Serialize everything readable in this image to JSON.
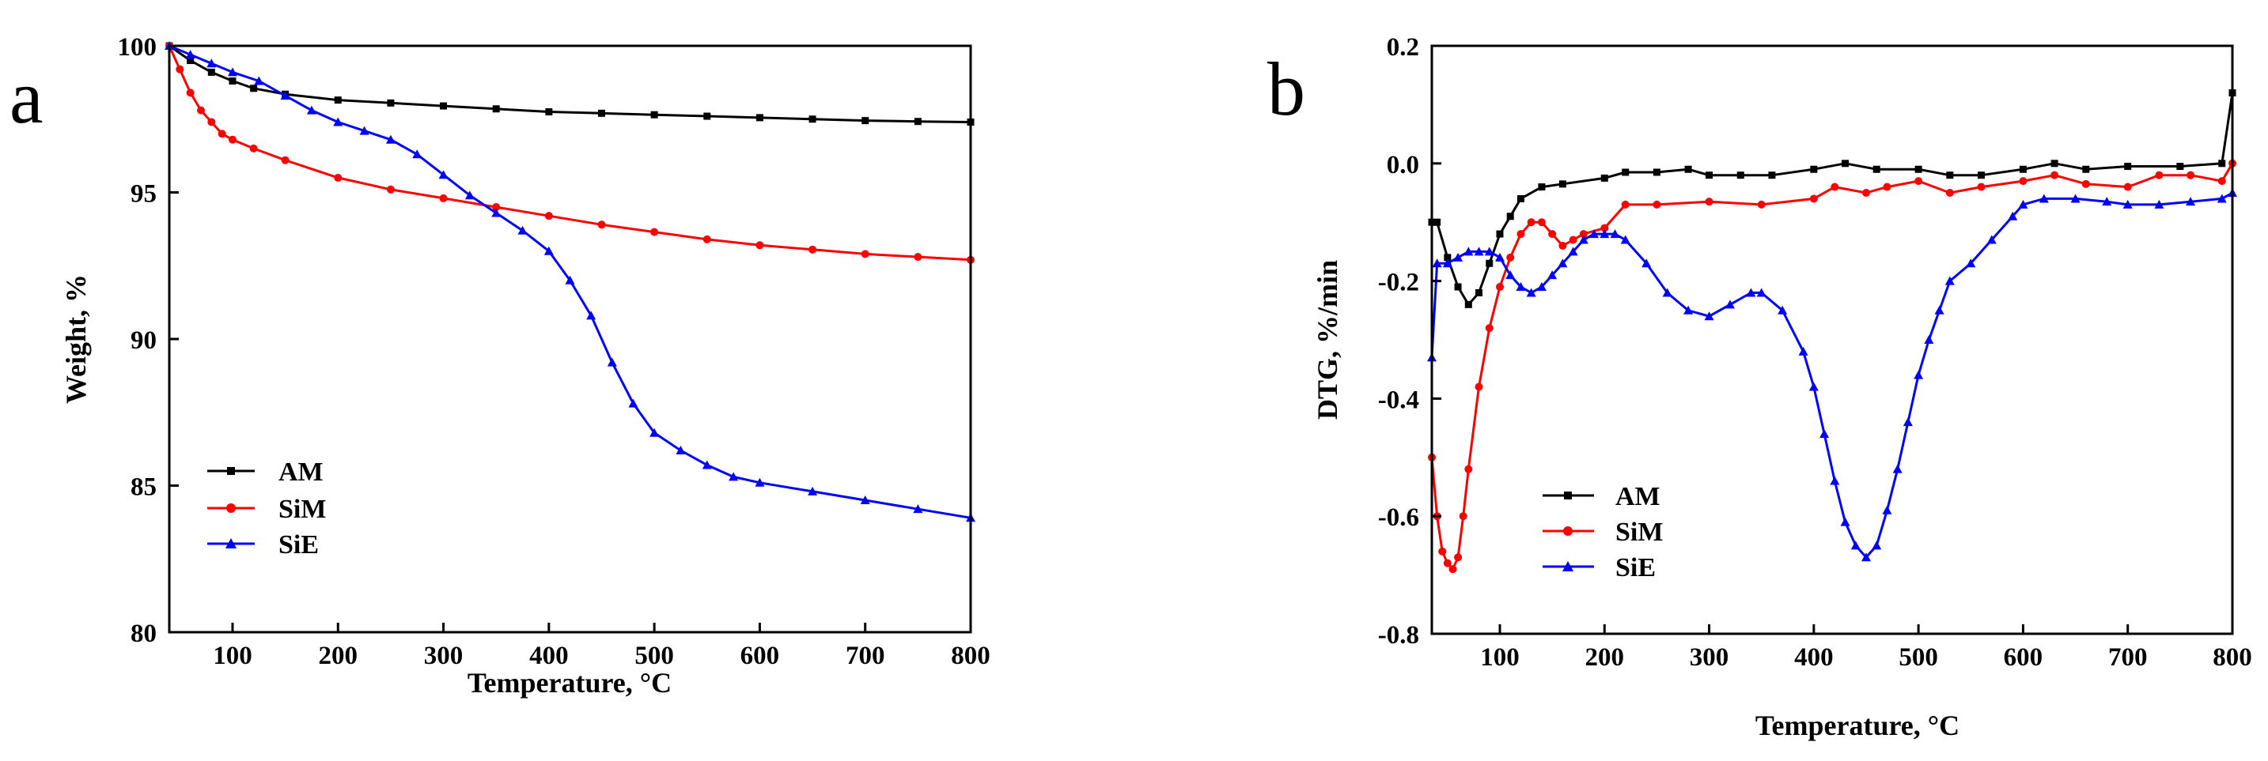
{
  "chart_data": [
    {
      "type": "line",
      "panel_label": "a",
      "title": "",
      "xlabel": "Temperature, °C",
      "ylabel": "Weight, %",
      "xlim": [
        40,
        800
      ],
      "ylim": [
        80,
        100
      ],
      "xticks": [
        100,
        200,
        300,
        400,
        500,
        600,
        700,
        800
      ],
      "xtick_labels": [
        "100",
        "200",
        "300",
        "400",
        "500",
        "600",
        "700",
        "800"
      ],
      "yticks": [
        80,
        85,
        90,
        95,
        100
      ],
      "ytick_labels": [
        "80",
        "85",
        "90",
        "95",
        "100"
      ],
      "grid": false,
      "legend_position": "bottom-left",
      "series": [
        {
          "name": "AM",
          "color": "#000000",
          "marker": "square",
          "x": [
            40,
            60,
            80,
            100,
            120,
            150,
            200,
            250,
            300,
            350,
            400,
            450,
            500,
            550,
            600,
            650,
            700,
            750,
            800
          ],
          "y": [
            100.0,
            99.5,
            99.1,
            98.8,
            98.55,
            98.35,
            98.15,
            98.05,
            97.95,
            97.85,
            97.75,
            97.7,
            97.65,
            97.6,
            97.55,
            97.5,
            97.45,
            97.42,
            97.4
          ]
        },
        {
          "name": "SiM",
          "color": "#ff0000",
          "marker": "circle",
          "x": [
            40,
            50,
            60,
            70,
            80,
            90,
            100,
            120,
            150,
            200,
            250,
            300,
            350,
            400,
            450,
            500,
            550,
            600,
            650,
            700,
            750,
            800
          ],
          "y": [
            100.0,
            99.2,
            98.4,
            97.8,
            97.4,
            97.0,
            96.8,
            96.5,
            96.1,
            95.5,
            95.1,
            94.8,
            94.5,
            94.2,
            93.9,
            93.65,
            93.4,
            93.2,
            93.05,
            92.9,
            92.8,
            92.7
          ]
        },
        {
          "name": "SiE",
          "color": "#0000ff",
          "marker": "triangle",
          "x": [
            40,
            60,
            80,
            100,
            125,
            150,
            175,
            200,
            225,
            250,
            275,
            300,
            325,
            350,
            375,
            400,
            420,
            440,
            460,
            480,
            500,
            525,
            550,
            575,
            600,
            650,
            700,
            750,
            800
          ],
          "y": [
            100.0,
            99.7,
            99.4,
            99.1,
            98.8,
            98.3,
            97.8,
            97.4,
            97.1,
            96.8,
            96.3,
            95.6,
            94.9,
            94.3,
            93.7,
            93.0,
            92.0,
            90.8,
            89.2,
            87.8,
            86.8,
            86.2,
            85.7,
            85.3,
            85.1,
            84.8,
            84.5,
            84.2,
            83.9
          ]
        }
      ]
    },
    {
      "type": "line",
      "panel_label": "b",
      "title": "",
      "xlabel": "Temperature, °C",
      "ylabel": "DTG, %/min",
      "xlim": [
        35,
        800
      ],
      "ylim": [
        -0.8,
        0.2
      ],
      "xticks": [
        100,
        200,
        300,
        400,
        500,
        600,
        700,
        800
      ],
      "xtick_labels": [
        "100",
        "200",
        "300",
        "400",
        "500",
        "600",
        "700",
        "800"
      ],
      "yticks": [
        -0.8,
        -0.6,
        -0.4,
        -0.2,
        0.0,
        0.2
      ],
      "ytick_labels": [
        "-0.8",
        "-0.6",
        "-0.4",
        "-0.2",
        "0.0",
        "0.2"
      ],
      "grid": false,
      "legend_position": "bottom-left",
      "series": [
        {
          "name": "AM",
          "color": "#000000",
          "marker": "square",
          "x": [
            35,
            40,
            50,
            60,
            70,
            80,
            90,
            100,
            110,
            120,
            140,
            160,
            200,
            220,
            250,
            280,
            300,
            330,
            360,
            400,
            430,
            460,
            500,
            530,
            560,
            600,
            630,
            660,
            700,
            750,
            790,
            800
          ],
          "y": [
            -0.1,
            -0.1,
            -0.16,
            -0.21,
            -0.24,
            -0.22,
            -0.17,
            -0.12,
            -0.09,
            -0.06,
            -0.04,
            -0.035,
            -0.025,
            -0.015,
            -0.015,
            -0.01,
            -0.02,
            -0.02,
            -0.02,
            -0.01,
            0.0,
            -0.01,
            -0.01,
            -0.02,
            -0.02,
            -0.01,
            0.0,
            -0.01,
            -0.005,
            -0.005,
            0.0,
            0.12
          ]
        },
        {
          "name": "SiM",
          "color": "#ff0000",
          "marker": "circle",
          "x": [
            35,
            40,
            45,
            50,
            55,
            60,
            65,
            70,
            80,
            90,
            100,
            110,
            120,
            130,
            140,
            150,
            160,
            170,
            180,
            200,
            220,
            250,
            300,
            350,
            400,
            420,
            450,
            470,
            500,
            530,
            560,
            600,
            630,
            660,
            700,
            730,
            760,
            790,
            800
          ],
          "y": [
            -0.5,
            -0.6,
            -0.66,
            -0.68,
            -0.69,
            -0.67,
            -0.6,
            -0.52,
            -0.38,
            -0.28,
            -0.21,
            -0.16,
            -0.12,
            -0.1,
            -0.1,
            -0.12,
            -0.14,
            -0.13,
            -0.12,
            -0.11,
            -0.07,
            -0.07,
            -0.065,
            -0.07,
            -0.06,
            -0.04,
            -0.05,
            -0.04,
            -0.03,
            -0.05,
            -0.04,
            -0.03,
            -0.02,
            -0.035,
            -0.04,
            -0.02,
            -0.02,
            -0.03,
            0.0
          ]
        },
        {
          "name": "SiE",
          "color": "#0000ff",
          "marker": "triangle",
          "x": [
            35,
            40,
            50,
            60,
            70,
            80,
            90,
            100,
            110,
            120,
            130,
            140,
            150,
            160,
            170,
            180,
            190,
            200,
            210,
            220,
            240,
            260,
            280,
            300,
            320,
            340,
            350,
            370,
            390,
            400,
            410,
            420,
            430,
            440,
            450,
            460,
            470,
            480,
            490,
            500,
            510,
            520,
            530,
            550,
            570,
            590,
            600,
            620,
            650,
            680,
            700,
            730,
            760,
            790,
            800
          ],
          "y": [
            -0.33,
            -0.17,
            -0.17,
            -0.16,
            -0.15,
            -0.15,
            -0.15,
            -0.16,
            -0.19,
            -0.21,
            -0.22,
            -0.21,
            -0.19,
            -0.17,
            -0.15,
            -0.13,
            -0.12,
            -0.12,
            -0.12,
            -0.13,
            -0.17,
            -0.22,
            -0.25,
            -0.26,
            -0.24,
            -0.22,
            -0.22,
            -0.25,
            -0.32,
            -0.38,
            -0.46,
            -0.54,
            -0.61,
            -0.65,
            -0.67,
            -0.65,
            -0.59,
            -0.52,
            -0.44,
            -0.36,
            -0.3,
            -0.25,
            -0.2,
            -0.17,
            -0.13,
            -0.09,
            -0.07,
            -0.06,
            -0.06,
            -0.065,
            -0.07,
            -0.07,
            -0.065,
            -0.06,
            -0.05
          ]
        }
      ]
    }
  ]
}
